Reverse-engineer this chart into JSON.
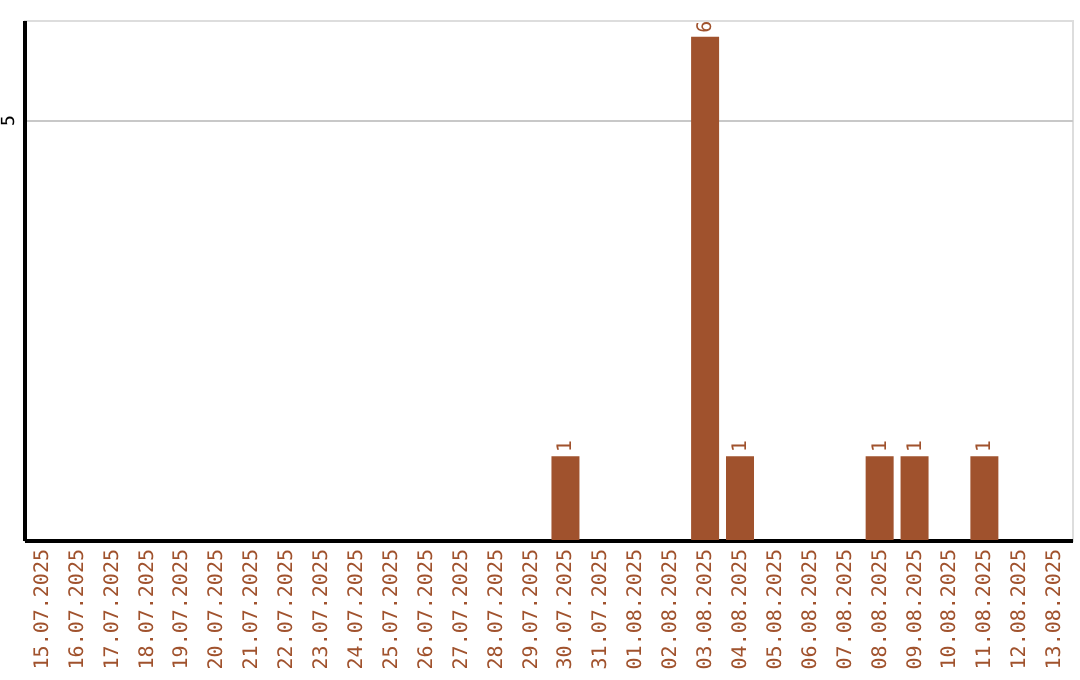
{
  "chart_data": {
    "type": "bar",
    "categories": [
      "15.07.2025",
      "16.07.2025",
      "17.07.2025",
      "18.07.2025",
      "19.07.2025",
      "20.07.2025",
      "21.07.2025",
      "22.07.2025",
      "23.07.2025",
      "24.07.2025",
      "25.07.2025",
      "26.07.2025",
      "27.07.2025",
      "28.07.2025",
      "29.07.2025",
      "30.07.2025",
      "31.07.2025",
      "01.08.2025",
      "02.08.2025",
      "03.08.2025",
      "04.08.2025",
      "05.08.2025",
      "06.08.2025",
      "07.08.2025",
      "08.08.2025",
      "09.08.2025",
      "10.08.2025",
      "11.08.2025",
      "12.08.2025",
      "13.08.2025"
    ],
    "series": [
      {
        "color": "#a0522d",
        "values": [
          null,
          null,
          null,
          null,
          null,
          null,
          null,
          null,
          null,
          null,
          null,
          null,
          null,
          null,
          null,
          1,
          null,
          null,
          null,
          6,
          1,
          null,
          null,
          null,
          1,
          1,
          null,
          1,
          null,
          null
        ],
        "value_labels": [
          null,
          null,
          null,
          null,
          null,
          null,
          null,
          null,
          null,
          null,
          null,
          null,
          null,
          null,
          null,
          "1",
          null,
          null,
          null,
          "6",
          "1",
          null,
          null,
          null,
          "1",
          "1",
          null,
          "1",
          null,
          null
        ]
      }
    ],
    "ylim": [
      0,
      6.2
    ],
    "yticks": [
      5
    ],
    "grid": "y"
  }
}
